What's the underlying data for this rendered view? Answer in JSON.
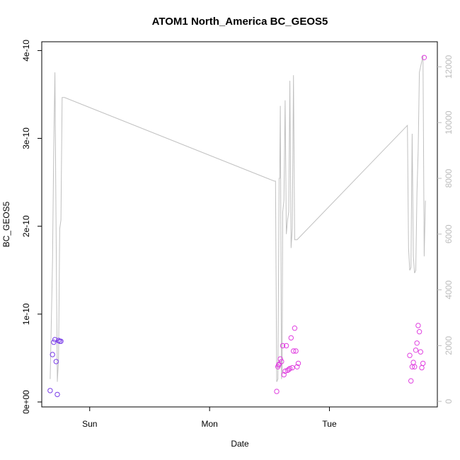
{
  "chart_data": {
    "type": "scatter",
    "title": "ATOM1 North_America BC_GEOS5",
    "xlabel": "Date",
    "ylabel": "BC_GEOS5",
    "x_ticks": [
      "Sun",
      "Mon",
      "Tue"
    ],
    "y_ticks": [
      "0e+00",
      "1e-10",
      "2e-10",
      "3e-10",
      "4e-10"
    ],
    "y_right_ticks": [
      "0",
      "2000",
      "4000",
      "6000",
      "8000",
      "10000",
      "12000"
    ],
    "xlim_days": [
      -0.4,
      2.9
    ],
    "ylim": [
      0,
      4.1e-10
    ],
    "y_right_lim": [
      -200,
      12900
    ],
    "grid": false,
    "colors": {
      "line": "#c0c0c0",
      "points_early": "#7a3de8",
      "points_late": "#e040e0"
    },
    "altitude_line": {
      "name": "",
      "x": [
        -0.33,
        -0.31,
        -0.3,
        -0.29,
        -0.28,
        -0.27,
        -0.26,
        -0.25,
        -0.24,
        -0.23,
        -0.22,
        -0.21,
        1.54,
        1.55,
        1.56,
        1.57,
        1.58,
        1.585,
        1.59,
        1.6,
        1.605,
        1.61,
        1.62,
        1.63,
        1.64,
        1.65,
        1.66,
        1.67,
        1.68,
        1.69,
        1.7,
        1.71,
        1.72,
        1.73,
        2.65,
        2.66,
        2.67,
        2.68,
        2.69,
        2.7,
        2.71,
        2.72,
        2.73,
        2.74,
        2.75,
        2.76,
        2.78,
        2.79,
        2.8
      ],
      "y": [
        800,
        5000,
        9000,
        11800,
        6000,
        700,
        1500,
        6200,
        6500,
        10900,
        10900,
        10900,
        7900,
        7900,
        700,
        800,
        8000,
        8000,
        10600,
        800,
        1000,
        6800,
        7200,
        10800,
        6000,
        6500,
        6800,
        11500,
        5500,
        6200,
        11700,
        5800,
        5800,
        5800,
        9900,
        5500,
        4700,
        4800,
        9600,
        5200,
        4600,
        4700,
        7500,
        9000,
        11800,
        12000,
        12400,
        5200,
        7200
      ]
    },
    "series": [
      {
        "name": "",
        "color": "#7a3de8",
        "x": [
          -0.33,
          -0.31,
          -0.3,
          -0.29,
          -0.28,
          -0.27,
          -0.26,
          -0.25,
          -0.24
        ],
        "y": [
          1.3e-11,
          5.4e-11,
          6.8e-11,
          7.1e-11,
          4.6e-11,
          8.5e-12,
          7e-11,
          6.9e-11,
          6.9e-11
        ]
      },
      {
        "name": "",
        "color": "#e040e0",
        "x": [
          1.56,
          1.57,
          1.575,
          1.58,
          1.59,
          1.6,
          1.61,
          1.62,
          1.63,
          1.64,
          1.65,
          1.66,
          1.67,
          1.68,
          1.69,
          1.7,
          1.71,
          1.72,
          1.73,
          1.74,
          2.67,
          2.68,
          2.69,
          2.7,
          2.71,
          2.72,
          2.73,
          2.74,
          2.75,
          2.76,
          2.77,
          2.78,
          2.79
        ],
        "y": [
          1.2e-11,
          4e-11,
          4.2e-11,
          4.3e-11,
          4.9e-11,
          4.6e-11,
          6.4e-11,
          3.1e-11,
          3.5e-11,
          6.4e-11,
          3.6e-11,
          3.7e-11,
          3.8e-11,
          7.3e-11,
          3.9e-11,
          5.8e-11,
          8.4e-11,
          5.8e-11,
          4e-11,
          4.4e-11,
          5.3e-11,
          2.4e-11,
          4e-11,
          4.5e-11,
          4e-11,
          5.9e-11,
          6.7e-11,
          8.7e-11,
          8e-11,
          5.7e-11,
          3.9e-11,
          4.4e-11,
          3.92e-10
        ]
      }
    ]
  }
}
